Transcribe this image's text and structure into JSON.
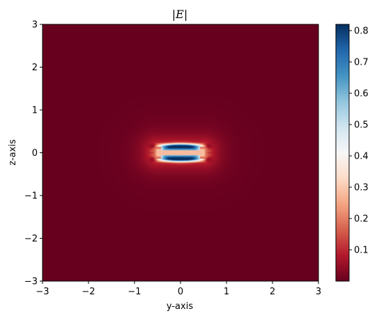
{
  "chart_data": {
    "type": "heatmap",
    "title": "|E|",
    "xlabel": "y-axis",
    "ylabel": "z-axis",
    "xlim": [
      -3,
      3
    ],
    "ylim": [
      -3,
      3
    ],
    "x_ticks": [
      -3,
      -2,
      -1,
      0,
      1,
      2,
      3
    ],
    "y_ticks": [
      -3,
      -2,
      -1,
      0,
      1,
      2,
      3
    ],
    "x_tick_labels": [
      "−3",
      "−2",
      "−1",
      "0",
      "1",
      "2",
      "3"
    ],
    "y_tick_labels": [
      "−3",
      "−2",
      "−1",
      "0",
      "1",
      "2",
      "3"
    ],
    "colormap": "RdBu",
    "colorbar": {
      "range": [
        0.0,
        0.82
      ],
      "ticks": [
        0.1,
        0.2,
        0.3,
        0.4,
        0.5,
        0.6,
        0.7,
        0.8
      ],
      "tick_labels": [
        "0.1",
        "0.2",
        "0.3",
        "0.4",
        "0.5",
        "0.6",
        "0.7",
        "0.8"
      ]
    },
    "field_features": {
      "background_value": 0.0,
      "strip": {
        "y_range": [
          -0.5,
          0.5
        ],
        "z_halfwidth": 0.06,
        "value": 0.28
      },
      "peak": {
        "value": 0.82,
        "z_offset": 0.15
      }
    }
  }
}
